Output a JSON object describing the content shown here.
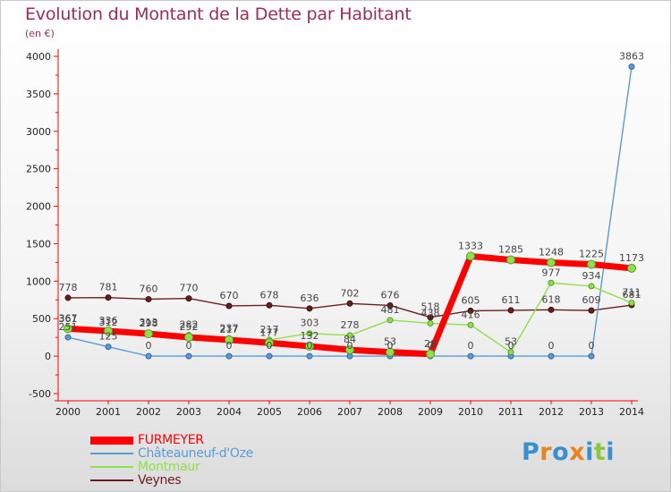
{
  "title": "Evolution du Montant de la Dette par Habitant",
  "subtitle": "(en €)",
  "logo": {
    "text": "Proxiti",
    "colors": [
      "#3a8fd0",
      "#e8831e",
      "#3a8fd0",
      "#e8831e",
      "#3a8fd0",
      "#8cc63f",
      "#3a8fd0"
    ]
  },
  "chart_data": {
    "type": "line",
    "title": "Evolution du Montant de la Dette par Habitant",
    "ylabel": "(en €)",
    "xlabel": "",
    "ylim": [
      -500,
      4000
    ],
    "yticks": [
      -500,
      0,
      500,
      1000,
      1500,
      2000,
      2500,
      3000,
      3500,
      4000
    ],
    "ytick_labels": [
      "-500",
      "0",
      "500",
      "1000",
      "1500",
      "2000",
      "2500",
      "3000",
      "3500",
      "4000"
    ],
    "x": [
      "2000",
      "2001",
      "2002",
      "2003",
      "2004",
      "2005",
      "2006",
      "2007",
      "2008",
      "2009",
      "2010",
      "2011",
      "2012",
      "2013",
      "2014"
    ],
    "grid": false,
    "legend": "bottom-left",
    "series": [
      {
        "name": "FURMEYER",
        "color": "#ff0000",
        "values": [
          367,
          336,
          298,
          252,
          217,
          177,
          132,
          84,
          53,
          28,
          1333,
          1285,
          1248,
          1225,
          1173
        ],
        "labels": [
          "367",
          "336",
          "298",
          "252",
          "217",
          "177",
          "132",
          "84",
          "53",
          "28",
          "1333",
          "1285",
          "1248",
          "1225",
          "1173"
        ]
      },
      {
        "name": "Châteauneuf-d'Oze",
        "color": "#5b9bd5",
        "values": [
          251,
          125,
          0,
          0,
          0,
          0,
          0,
          0,
          0,
          0,
          0,
          0,
          0,
          0,
          3863
        ],
        "labels": [
          "251",
          "125",
          "0",
          "0",
          "0",
          "0",
          "0",
          "0",
          "0",
          "0",
          "0",
          "0",
          "0",
          "0",
          "3863"
        ]
      },
      {
        "name": "Montmaur",
        "color": "#8ee04a",
        "values": [
          361,
          312,
          313,
          282,
          237,
          217,
          303,
          278,
          481,
          438,
          416,
          53,
          977,
          934,
          711
        ],
        "labels": [
          "361",
          "312",
          "313",
          "282",
          "237",
          "217",
          "303",
          "278",
          "481",
          "438",
          "416",
          "53",
          "977",
          "934",
          "711"
        ]
      },
      {
        "name": "Veynes",
        "color": "#6b1e1e",
        "values": [
          778,
          781,
          760,
          770,
          670,
          678,
          636,
          702,
          676,
          518,
          605,
          611,
          618,
          609,
          681
        ],
        "labels": [
          "778",
          "781",
          "760",
          "770",
          "670",
          "678",
          "636",
          "702",
          "676",
          "518",
          "605",
          "611",
          "618",
          "609",
          "681"
        ]
      }
    ]
  }
}
